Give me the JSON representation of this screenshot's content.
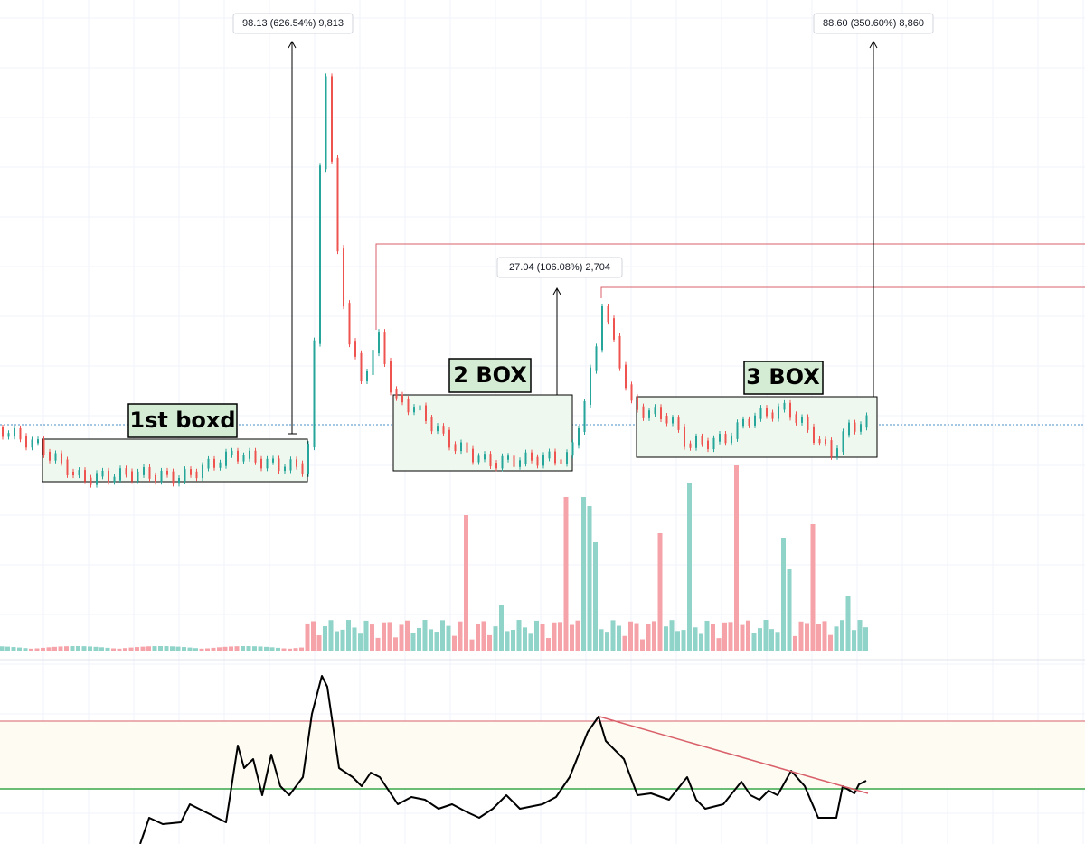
{
  "measures": [
    "98.13 (626.54%) 9,813",
    "27.04 (106.08%) 2,704",
    "88.60 (350.60%) 8,860"
  ],
  "boxes": [
    "1st boxd",
    "2 BOX",
    "3 BOX"
  ]
}
